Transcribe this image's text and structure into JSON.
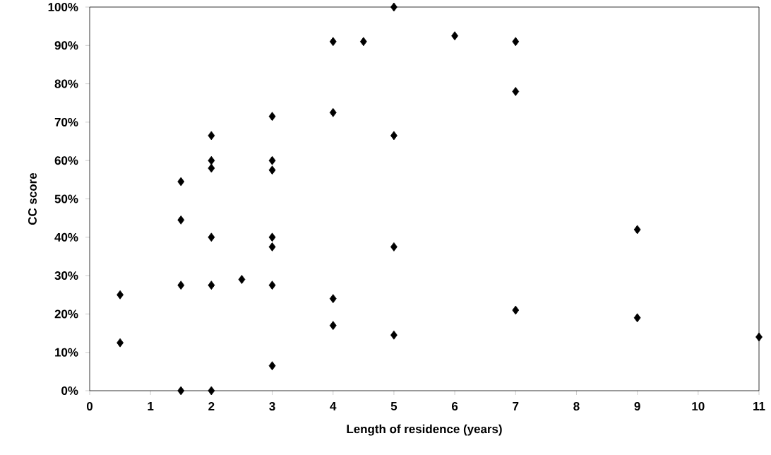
{
  "chart_data": {
    "type": "scatter",
    "xlabel": "Length of residence (years)",
    "ylabel": "CC score",
    "x": [
      0.5,
      0.5,
      1.5,
      1.5,
      1.5,
      1.5,
      2,
      2,
      2,
      2,
      2,
      2,
      2.5,
      3,
      3,
      3,
      3,
      3,
      3,
      3,
      4,
      4,
      4,
      4,
      4.5,
      5,
      5,
      5,
      5,
      6,
      7,
      7,
      7,
      9,
      9,
      11
    ],
    "values": [
      25,
      12.5,
      54.5,
      44.5,
      27.5,
      0,
      66.5,
      60,
      58,
      40,
      27.5,
      0,
      29,
      71.5,
      60,
      57.5,
      40,
      37.5,
      27.5,
      6.5,
      91,
      72.5,
      24,
      17,
      91,
      100,
      66.5,
      37.5,
      14.5,
      92.5,
      91,
      78,
      21,
      42,
      19,
      14
    ],
    "color": "#000000",
    "marker": "diamond",
    "xlim": [
      0,
      11
    ],
    "ylim": [
      0,
      100
    ],
    "xticks": [
      0,
      1,
      2,
      3,
      4,
      5,
      6,
      7,
      8,
      9,
      10,
      11
    ],
    "yticks": [
      {
        "value": 0,
        "label": "0%"
      },
      {
        "value": 10,
        "label": "10%"
      },
      {
        "value": 20,
        "label": "20%"
      },
      {
        "value": 30,
        "label": "30%"
      },
      {
        "value": 40,
        "label": "40%"
      },
      {
        "value": 50,
        "label": "50%"
      },
      {
        "value": 60,
        "label": "60%"
      },
      {
        "value": 70,
        "label": "70%"
      },
      {
        "value": 80,
        "label": "80%"
      },
      {
        "value": 90,
        "label": "90%"
      },
      {
        "value": 100,
        "label": "100%"
      }
    ]
  }
}
